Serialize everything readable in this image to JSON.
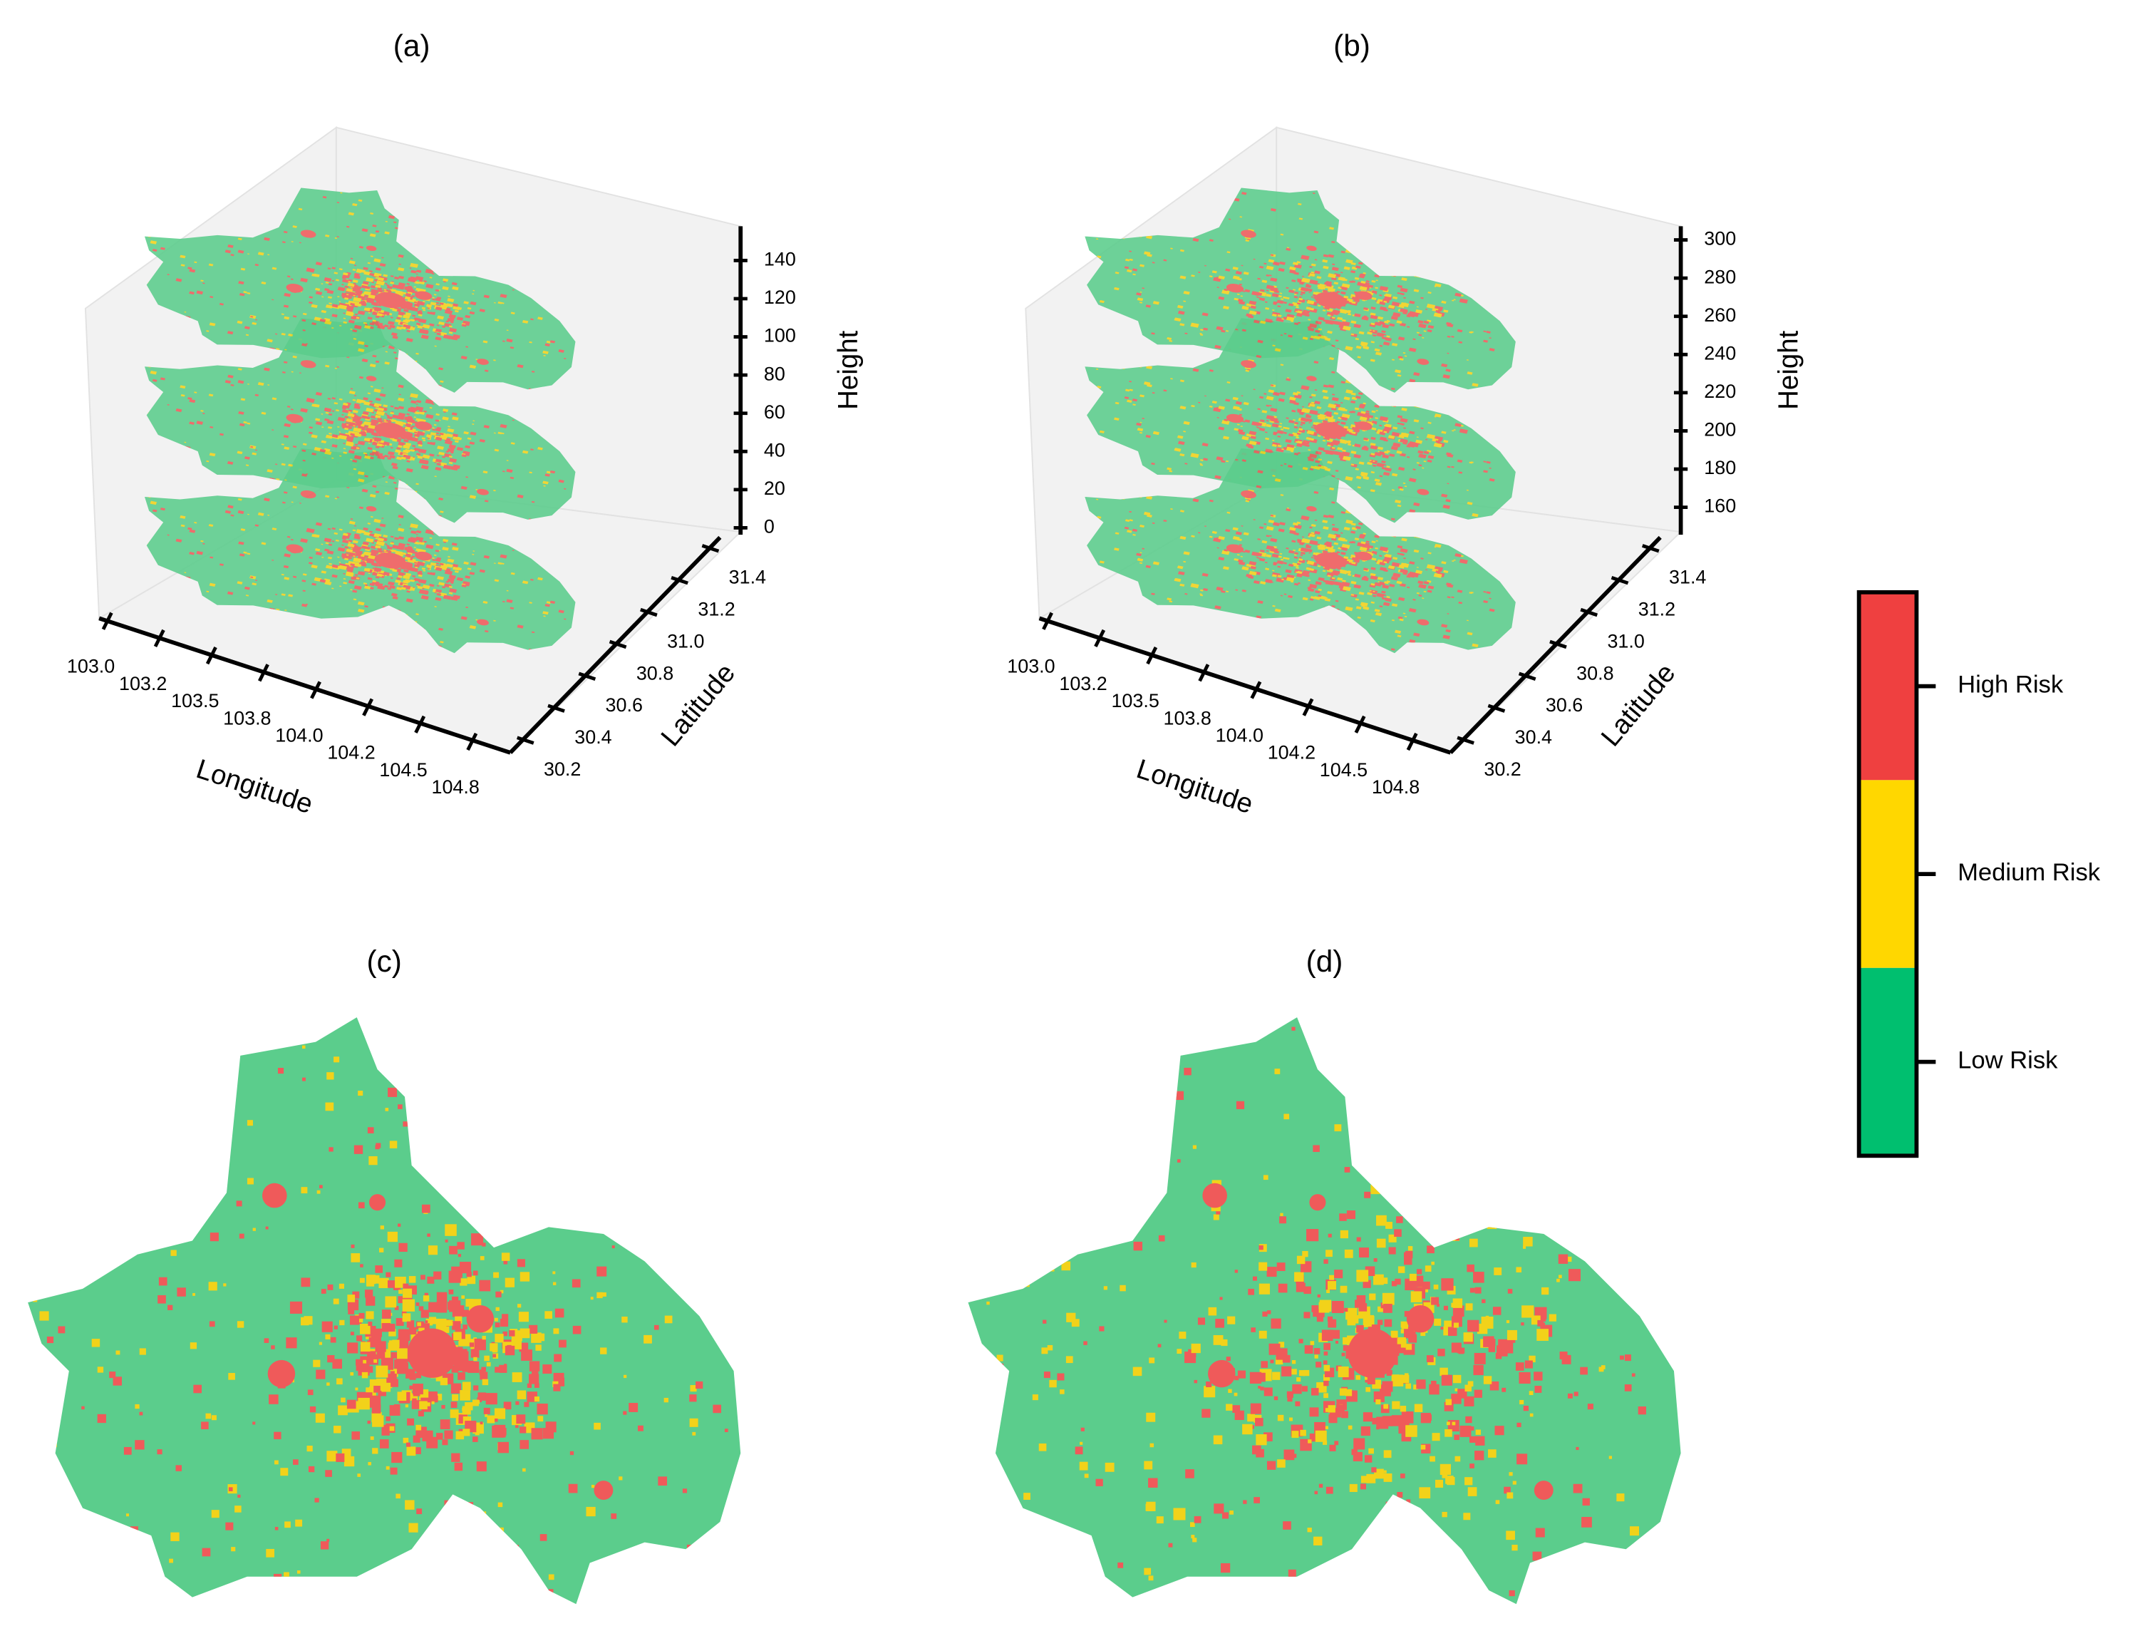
{
  "panels": [
    {
      "title": "(a)",
      "x_axis": {
        "label": "Longitude",
        "ticks": [
          "103.0",
          "103.2",
          "103.5",
          "103.8",
          "104.0",
          "104.2",
          "104.5",
          "104.8"
        ]
      },
      "y_axis": {
        "label": "Latitude",
        "ticks": [
          "30.2",
          "30.4",
          "30.6",
          "30.8",
          "31.0",
          "31.2",
          "31.4"
        ]
      },
      "z_axis": {
        "label": "Height",
        "ticks": [
          "0",
          "20",
          "40",
          "60",
          "80",
          "100",
          "120",
          "140"
        ]
      }
    },
    {
      "title": "(b)",
      "x_axis": {
        "label": "Longitude",
        "ticks": [
          "103.0",
          "103.2",
          "103.5",
          "103.8",
          "104.0",
          "104.2",
          "104.5",
          "104.8"
        ]
      },
      "y_axis": {
        "label": "Latitude",
        "ticks": [
          "30.2",
          "30.4",
          "30.6",
          "30.8",
          "31.0",
          "31.2",
          "31.4"
        ]
      },
      "z_axis": {
        "label": "Height",
        "ticks": [
          "160",
          "180",
          "200",
          "220",
          "240",
          "260",
          "280",
          "300"
        ]
      }
    },
    {
      "title": "(c)"
    },
    {
      "title": "(d)"
    }
  ],
  "legend": {
    "items": [
      {
        "label": "High Risk",
        "color": "#ef4040"
      },
      {
        "label": "Medium Risk",
        "color": "#ffd700"
      },
      {
        "label": "Low Risk",
        "color": "#00bf6f"
      }
    ]
  }
}
